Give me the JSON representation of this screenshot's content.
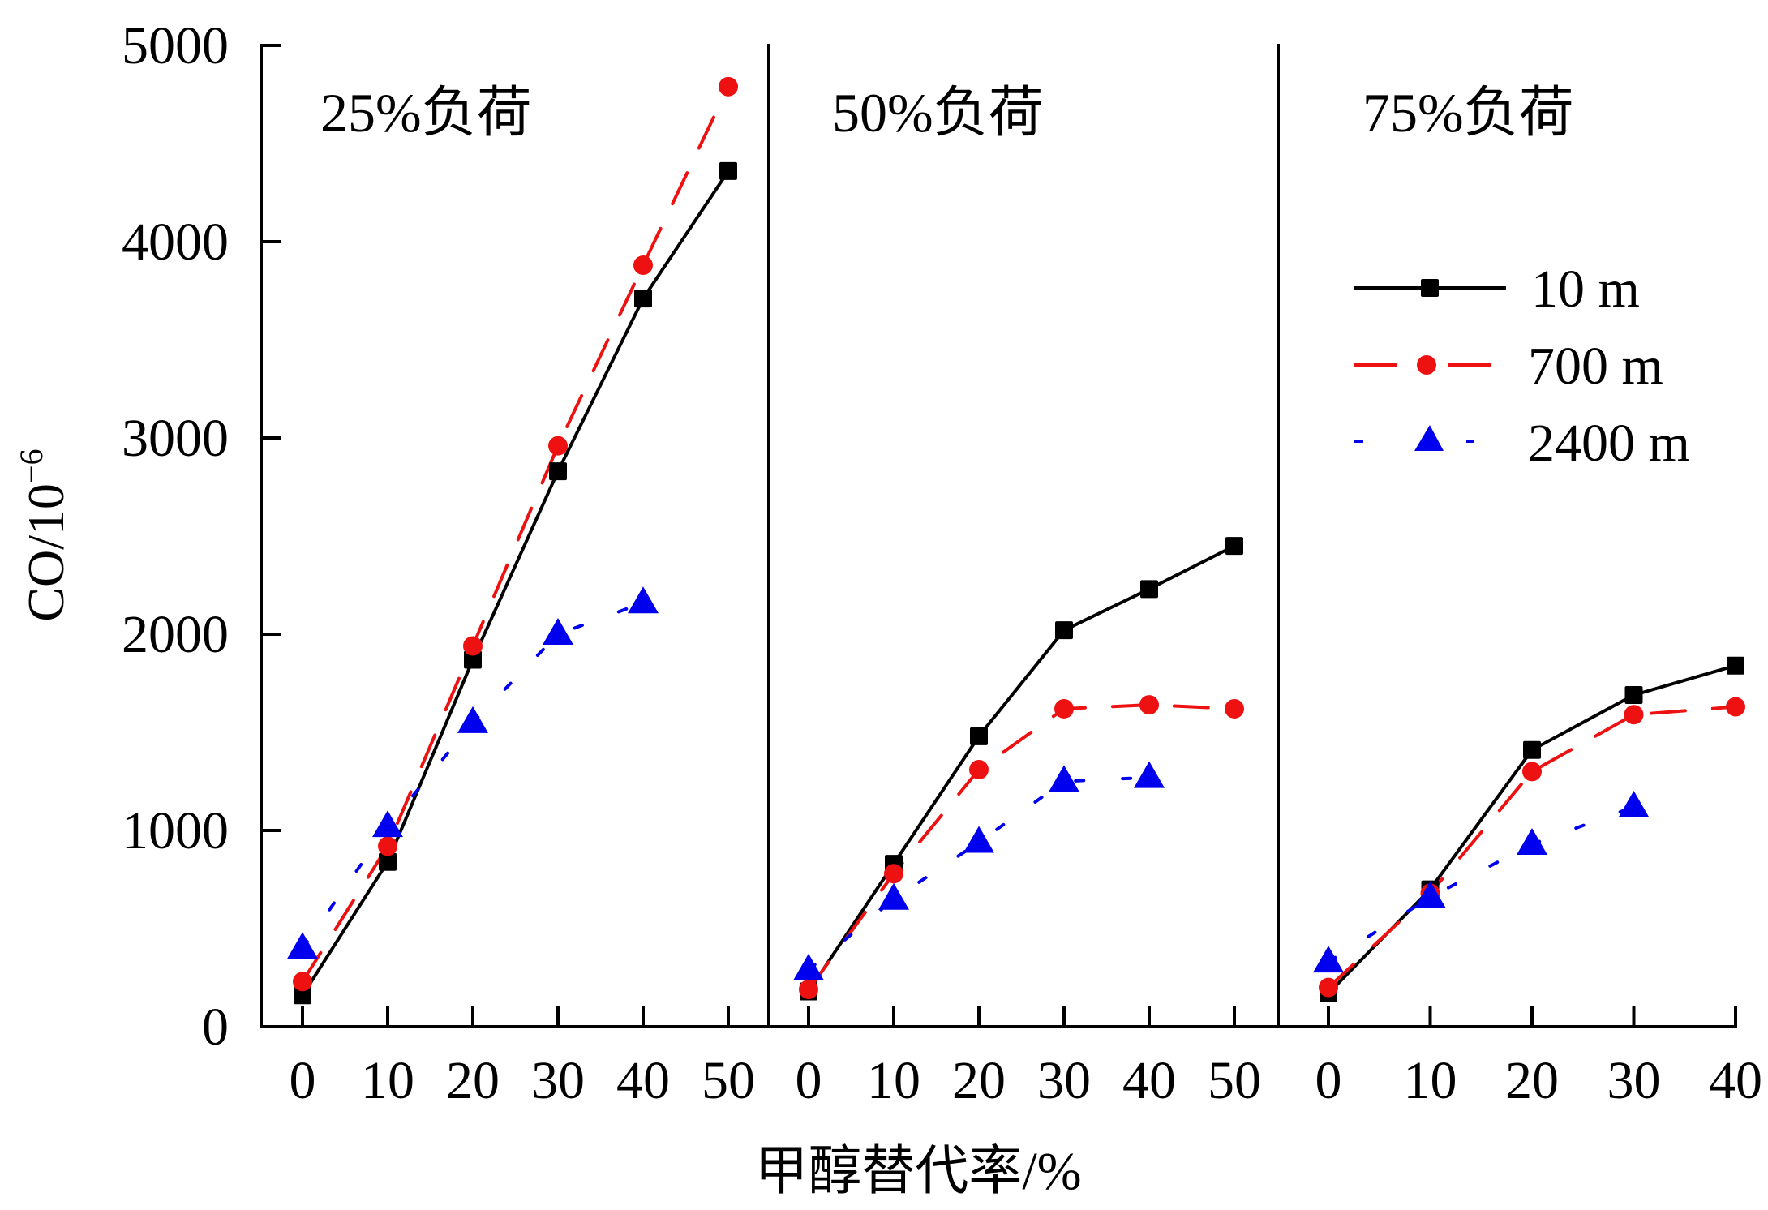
{
  "chart_data": {
    "type": "line",
    "ylabel": "CO/10",
    "ylabel_superscript": "−6",
    "xlabel": "甲醇替代率/%",
    "ylim": [
      0,
      5000
    ],
    "yticks": [
      "0",
      "1000",
      "2000",
      "3000",
      "4000",
      "5000"
    ],
    "ytick_values": [
      0,
      1000,
      2000,
      3000,
      4000,
      5000
    ],
    "legend": {
      "placement": "right, upper-middle",
      "entries": [
        "10 m",
        "700 m",
        "2400 m"
      ]
    },
    "series_styles": [
      {
        "name": "10 m",
        "color": "#000000",
        "marker": "square",
        "dash": "solid"
      },
      {
        "name": "700 m",
        "color": "#ee1111",
        "marker": "circle",
        "dash": "dashed"
      },
      {
        "name": "2400 m",
        "color": "#0000ee",
        "marker": "triangle",
        "dash": "dotted"
      }
    ],
    "panels": [
      {
        "title": "25%负荷",
        "x": [
          0,
          10,
          20,
          30,
          40,
          50
        ],
        "xticks": [
          "0",
          "10",
          "20",
          "30",
          "40",
          "50"
        ],
        "series": [
          {
            "name": "10 m",
            "values": [
              160,
              840,
              1870,
              2830,
              3710,
              4360
            ]
          },
          {
            "name": "700 m",
            "values": [
              230,
              920,
              1940,
              2960,
              3880,
              4790
            ]
          },
          {
            "name": "2400 m",
            "values": [
              400,
              1020,
              1550,
              2000,
              2160
            ]
          }
        ]
      },
      {
        "title": "50%负荷",
        "x": [
          0,
          10,
          20,
          30,
          40,
          50
        ],
        "xticks": [
          "0",
          "10",
          "20",
          "30",
          "40",
          "50"
        ],
        "series": [
          {
            "name": "10 m",
            "values": [
              180,
              830,
              1480,
              2020,
              2230,
              2450
            ]
          },
          {
            "name": "700 m",
            "values": [
              190,
              780,
              1310,
              1620,
              1640,
              1620
            ]
          },
          {
            "name": "2400 m",
            "values": [
              290,
              650,
              940,
              1250,
              1270
            ]
          }
        ]
      },
      {
        "title": "75%负荷",
        "x": [
          0,
          10,
          20,
          30,
          40
        ],
        "xticks": [
          "0",
          "10",
          "20",
          "30",
          "40"
        ],
        "series": [
          {
            "name": "10 m",
            "values": [
              170,
              700,
              1410,
              1690,
              1840
            ]
          },
          {
            "name": "700 m",
            "values": [
              200,
              680,
              1300,
              1590,
              1630
            ]
          },
          {
            "name": "2400 m",
            "values": [
              330,
              660,
              930,
              1120
            ]
          }
        ]
      }
    ]
  }
}
